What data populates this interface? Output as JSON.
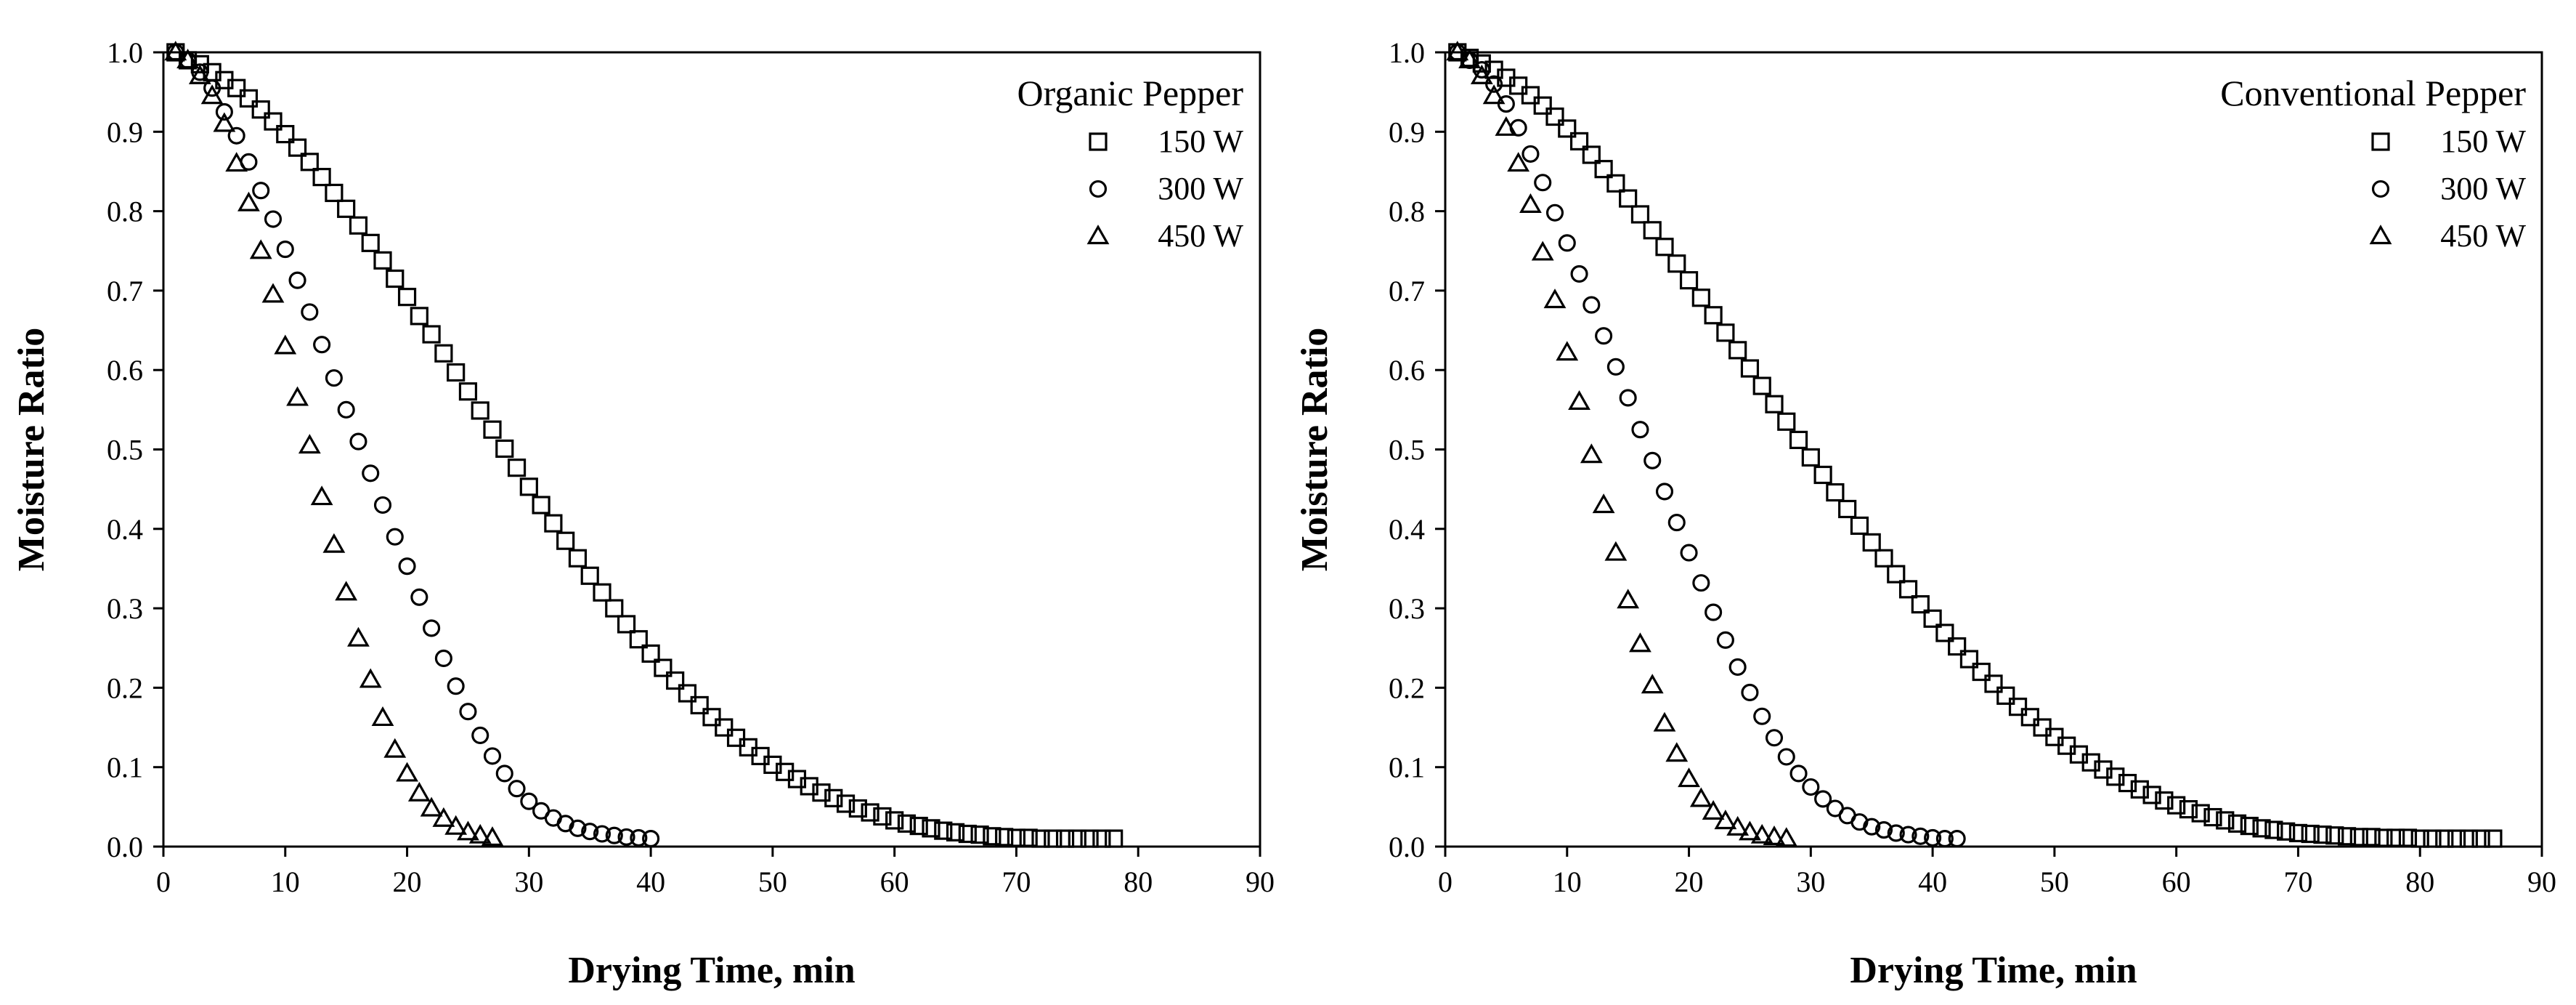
{
  "chart_data": [
    {
      "type": "scatter",
      "legend_title": "Organic Pepper",
      "xlabel": "Drying Time, min",
      "ylabel": "Moisture Ratio",
      "xlim": [
        0,
        90
      ],
      "ylim": [
        0,
        1.0
      ],
      "xticks": [
        "0",
        "10",
        "20",
        "30",
        "40",
        "50",
        "60",
        "70",
        "80",
        "90"
      ],
      "yticks": [
        "0.0",
        "0.1",
        "0.2",
        "0.3",
        "0.4",
        "0.5",
        "0.6",
        "0.7",
        "0.8",
        "0.9",
        "1.0"
      ],
      "legend_position": "top-right",
      "series": [
        {
          "name": "150 W",
          "marker": "square",
          "x": [
            1,
            2,
            3,
            4,
            5,
            6,
            7,
            8,
            9,
            10,
            11,
            12,
            13,
            14,
            15,
            16,
            17,
            18,
            19,
            20,
            21,
            22,
            23,
            24,
            25,
            26,
            27,
            28,
            29,
            30,
            31,
            32,
            33,
            34,
            35,
            36,
            37,
            38,
            39,
            40,
            41,
            42,
            43,
            44,
            45,
            46,
            47,
            48,
            49,
            50,
            51,
            52,
            53,
            54,
            55,
            56,
            57,
            58,
            59,
            60,
            61,
            62,
            63,
            64,
            65,
            66,
            67,
            68,
            69,
            70,
            71,
            72,
            73,
            74,
            75,
            76,
            77,
            78
          ],
          "y": [
            1.0,
            0.99,
            0.985,
            0.975,
            0.965,
            0.955,
            0.942,
            0.928,
            0.913,
            0.897,
            0.88,
            0.862,
            0.843,
            0.823,
            0.803,
            0.782,
            0.76,
            0.738,
            0.715,
            0.692,
            0.668,
            0.645,
            0.621,
            0.597,
            0.573,
            0.549,
            0.525,
            0.501,
            0.477,
            0.453,
            0.43,
            0.407,
            0.385,
            0.363,
            0.341,
            0.32,
            0.3,
            0.28,
            0.261,
            0.243,
            0.225,
            0.209,
            0.193,
            0.178,
            0.163,
            0.15,
            0.137,
            0.125,
            0.114,
            0.103,
            0.094,
            0.085,
            0.076,
            0.068,
            0.061,
            0.054,
            0.048,
            0.043,
            0.038,
            0.033,
            0.029,
            0.026,
            0.023,
            0.02,
            0.018,
            0.016,
            0.015,
            0.013,
            0.012,
            0.011,
            0.011,
            0.01,
            0.01,
            0.01,
            0.01,
            0.01,
            0.01,
            0.01
          ]
        },
        {
          "name": "300 W",
          "marker": "circle",
          "x": [
            1,
            2,
            3,
            4,
            5,
            6,
            7,
            8,
            9,
            10,
            11,
            12,
            13,
            14,
            15,
            16,
            17,
            18,
            19,
            20,
            21,
            22,
            23,
            24,
            25,
            26,
            27,
            28,
            29,
            30,
            31,
            32,
            33,
            34,
            35,
            36,
            37,
            38,
            39,
            40
          ],
          "y": [
            1.0,
            0.99,
            0.975,
            0.955,
            0.925,
            0.895,
            0.862,
            0.826,
            0.79,
            0.752,
            0.713,
            0.673,
            0.632,
            0.59,
            0.55,
            0.51,
            0.47,
            0.43,
            0.39,
            0.353,
            0.314,
            0.275,
            0.237,
            0.202,
            0.17,
            0.14,
            0.114,
            0.092,
            0.073,
            0.057,
            0.045,
            0.036,
            0.029,
            0.023,
            0.019,
            0.016,
            0.014,
            0.012,
            0.011,
            0.01
          ]
        },
        {
          "name": "450 W",
          "marker": "triangle",
          "x": [
            1,
            2,
            3,
            4,
            5,
            6,
            7,
            8,
            9,
            10,
            11,
            12,
            13,
            14,
            15,
            16,
            17,
            18,
            19,
            20,
            21,
            22,
            23,
            24,
            25,
            26,
            27
          ],
          "y": [
            1.0,
            0.99,
            0.97,
            0.945,
            0.91,
            0.86,
            0.81,
            0.75,
            0.695,
            0.63,
            0.565,
            0.505,
            0.44,
            0.38,
            0.32,
            0.262,
            0.21,
            0.162,
            0.122,
            0.092,
            0.067,
            0.048,
            0.035,
            0.025,
            0.018,
            0.014,
            0.011
          ]
        }
      ]
    },
    {
      "type": "scatter",
      "legend_title": "Conventional Pepper",
      "xlabel": "Drying Time, min",
      "ylabel": "Moisture Ratio",
      "xlim": [
        0,
        90
      ],
      "ylim": [
        0,
        1.0
      ],
      "xticks": [
        "0",
        "10",
        "20",
        "30",
        "40",
        "50",
        "60",
        "70",
        "80",
        "90"
      ],
      "yticks": [
        "0.0",
        "0.1",
        "0.2",
        "0.3",
        "0.4",
        "0.5",
        "0.6",
        "0.7",
        "0.8",
        "0.9",
        "1.0"
      ],
      "legend_position": "top-right",
      "series": [
        {
          "name": "150 W",
          "marker": "square",
          "x": [
            1,
            2,
            3,
            4,
            5,
            6,
            7,
            8,
            9,
            10,
            11,
            12,
            13,
            14,
            15,
            16,
            17,
            18,
            19,
            20,
            21,
            22,
            23,
            24,
            25,
            26,
            27,
            28,
            29,
            30,
            31,
            32,
            33,
            34,
            35,
            36,
            37,
            38,
            39,
            40,
            41,
            42,
            43,
            44,
            45,
            46,
            47,
            48,
            49,
            50,
            51,
            52,
            53,
            54,
            55,
            56,
            57,
            58,
            59,
            60,
            61,
            62,
            63,
            64,
            65,
            66,
            67,
            68,
            69,
            70,
            71,
            72,
            73,
            74,
            75,
            76,
            77,
            78,
            79,
            80,
            81,
            82,
            83,
            84,
            85,
            86
          ],
          "y": [
            1.0,
            0.993,
            0.986,
            0.978,
            0.968,
            0.958,
            0.946,
            0.933,
            0.919,
            0.904,
            0.888,
            0.871,
            0.853,
            0.835,
            0.816,
            0.796,
            0.776,
            0.755,
            0.734,
            0.713,
            0.691,
            0.669,
            0.647,
            0.625,
            0.602,
            0.58,
            0.557,
            0.535,
            0.512,
            0.49,
            0.468,
            0.446,
            0.425,
            0.404,
            0.383,
            0.363,
            0.343,
            0.324,
            0.305,
            0.287,
            0.269,
            0.252,
            0.236,
            0.22,
            0.205,
            0.19,
            0.176,
            0.163,
            0.15,
            0.138,
            0.127,
            0.116,
            0.106,
            0.097,
            0.088,
            0.08,
            0.072,
            0.065,
            0.058,
            0.052,
            0.047,
            0.042,
            0.037,
            0.033,
            0.029,
            0.026,
            0.023,
            0.021,
            0.019,
            0.017,
            0.016,
            0.015,
            0.014,
            0.013,
            0.012,
            0.012,
            0.011,
            0.011,
            0.011,
            0.01,
            0.01,
            0.01,
            0.01,
            0.01,
            0.01,
            0.01
          ]
        },
        {
          "name": "300 W",
          "marker": "circle",
          "x": [
            1,
            2,
            3,
            4,
            5,
            6,
            7,
            8,
            9,
            10,
            11,
            12,
            13,
            14,
            15,
            16,
            17,
            18,
            19,
            20,
            21,
            22,
            23,
            24,
            25,
            26,
            27,
            28,
            29,
            30,
            31,
            32,
            33,
            34,
            35,
            36,
            37,
            38,
            39,
            40,
            41,
            42
          ],
          "y": [
            1.0,
            0.99,
            0.978,
            0.96,
            0.935,
            0.905,
            0.872,
            0.836,
            0.798,
            0.76,
            0.721,
            0.682,
            0.643,
            0.604,
            0.565,
            0.525,
            0.486,
            0.447,
            0.408,
            0.37,
            0.332,
            0.295,
            0.26,
            0.226,
            0.194,
            0.164,
            0.137,
            0.113,
            0.092,
            0.075,
            0.06,
            0.048,
            0.039,
            0.031,
            0.025,
            0.021,
            0.017,
            0.015,
            0.013,
            0.011,
            0.01,
            0.01
          ]
        },
        {
          "name": "450 W",
          "marker": "triangle",
          "x": [
            1,
            2,
            3,
            4,
            5,
            6,
            7,
            8,
            9,
            10,
            11,
            12,
            13,
            14,
            15,
            16,
            17,
            18,
            19,
            20,
            21,
            22,
            23,
            24,
            25,
            26,
            27,
            28
          ],
          "y": [
            1.0,
            0.99,
            0.97,
            0.945,
            0.905,
            0.86,
            0.808,
            0.748,
            0.688,
            0.622,
            0.56,
            0.493,
            0.43,
            0.37,
            0.31,
            0.255,
            0.203,
            0.155,
            0.117,
            0.085,
            0.06,
            0.044,
            0.032,
            0.024,
            0.018,
            0.014,
            0.012,
            0.01
          ]
        }
      ]
    }
  ]
}
